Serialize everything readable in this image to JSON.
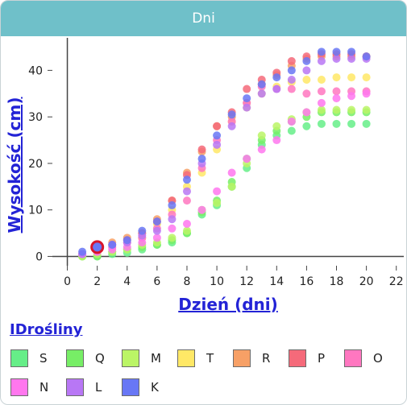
{
  "header": {
    "title": "Dni"
  },
  "chart_data": {
    "type": "scatter",
    "xlabel": "Dzień (dni)",
    "ylabel": "Wysokość (cm)",
    "xlim": [
      -1,
      22.5
    ],
    "ylim": [
      -2,
      47
    ],
    "xticks": [
      "0",
      "2",
      "4",
      "6",
      "8",
      "10",
      "12",
      "14",
      "16",
      "18",
      "20",
      "22"
    ],
    "yticks": [
      "0",
      "10",
      "20",
      "30",
      "40"
    ],
    "grid": false,
    "legend_placement": "bottom",
    "legend_title": "IDrośliny",
    "highlight": {
      "series": "K",
      "x": 2,
      "y": 2
    },
    "series": [
      {
        "name": "S",
        "color": "#66ee88",
        "x": [
          1,
          2,
          3,
          4,
          5,
          6,
          7,
          8,
          9,
          10,
          11,
          12,
          13,
          14,
          15,
          16,
          17,
          18,
          19,
          20
        ],
        "y": [
          0,
          0,
          0.5,
          0.8,
          1.5,
          2.5,
          3,
          5,
          9,
          11,
          15,
          19,
          24,
          26,
          27,
          28,
          28.5,
          28.5,
          28.5,
          28.5
        ]
      },
      {
        "name": "Q",
        "color": "#77ee66",
        "x": [
          1,
          2,
          3,
          4,
          5,
          6,
          7,
          8,
          9,
          10,
          11,
          12,
          13,
          14,
          15,
          16,
          17,
          18,
          19,
          20
        ],
        "y": [
          0,
          0,
          1,
          1.5,
          2,
          2.5,
          3.5,
          5,
          9.5,
          12,
          16,
          21,
          25,
          27,
          29,
          30,
          31,
          31,
          31,
          31
        ]
      },
      {
        "name": "M",
        "color": "#bbf566",
        "x": [
          1,
          2,
          3,
          4,
          5,
          6,
          7,
          8,
          9,
          10,
          11,
          12,
          13,
          14,
          15,
          16,
          17,
          18,
          19,
          20
        ],
        "y": [
          0,
          0.5,
          1,
          1.5,
          2.5,
          3,
          4,
          5.5,
          10,
          11.5,
          15,
          20,
          26,
          28,
          29.5,
          31,
          31.5,
          31.5,
          31.5,
          31.5
        ]
      },
      {
        "name": "T",
        "color": "#ffe866",
        "x": [
          1,
          2,
          3,
          4,
          5,
          6,
          7,
          8,
          9,
          10,
          11,
          12,
          13,
          14,
          15,
          16,
          17,
          18,
          19,
          20
        ],
        "y": [
          0.5,
          1,
          2,
          3,
          4,
          7,
          10,
          15,
          18,
          23,
          29,
          32,
          35,
          36.5,
          37.5,
          38,
          38,
          38.5,
          38.5,
          38.5
        ]
      },
      {
        "name": "R",
        "color": "#f7a066",
        "x": [
          1,
          2,
          3,
          4,
          5,
          6,
          7,
          8,
          9,
          10,
          11,
          12,
          13,
          14,
          15,
          16,
          17,
          18,
          19,
          20
        ],
        "y": [
          0.5,
          1.5,
          3,
          4,
          5,
          8,
          12,
          18,
          22.5,
          28,
          30,
          33,
          37,
          39,
          41,
          42.5,
          43,
          43,
          43,
          43
        ]
      },
      {
        "name": "P",
        "color": "#f56a7a",
        "x": [
          1,
          2,
          3,
          4,
          5,
          6,
          7,
          8,
          9,
          10,
          11,
          12,
          13,
          14,
          15,
          16,
          17,
          18,
          19,
          20
        ],
        "y": [
          0.5,
          1.5,
          2.5,
          3.5,
          5,
          7.5,
          12,
          17.5,
          23,
          28,
          31,
          36,
          38,
          39.5,
          42,
          43,
          43.5,
          43.5,
          43.5,
          43
        ]
      },
      {
        "name": "O",
        "color": "#ff77c0",
        "x": [
          1,
          2,
          3,
          4,
          5,
          6,
          7,
          8,
          9,
          10,
          11,
          12,
          13,
          14,
          15,
          16,
          17,
          18,
          19,
          20
        ],
        "y": [
          0.5,
          1,
          2,
          3,
          4,
          6,
          9,
          12,
          19,
          25,
          29,
          33,
          36.5,
          36,
          36,
          35,
          35.5,
          35.5,
          35.5,
          35.5
        ]
      },
      {
        "name": "N",
        "color": "#ff77ee",
        "x": [
          1,
          2,
          3,
          4,
          5,
          6,
          7,
          8,
          9,
          10,
          11,
          12,
          13,
          14,
          15,
          16,
          17,
          18,
          19,
          20
        ],
        "y": [
          0.5,
          1,
          1.5,
          2,
          3,
          4,
          6,
          7,
          10,
          14,
          18,
          21,
          23,
          25,
          29,
          31,
          33,
          34,
          34.5,
          35
        ]
      },
      {
        "name": "L",
        "color": "#b877f5",
        "x": [
          1,
          2,
          3,
          4,
          5,
          6,
          7,
          8,
          9,
          10,
          11,
          12,
          13,
          14,
          15,
          16,
          17,
          18,
          19,
          20
        ],
        "y": [
          0.5,
          1.5,
          2.5,
          3,
          4.5,
          5.5,
          8,
          14,
          20,
          24,
          28,
          32,
          35,
          36,
          38,
          40,
          42,
          42.5,
          42.5,
          42.5
        ]
      },
      {
        "name": "K",
        "color": "#6877f5",
        "x": [
          1,
          2,
          3,
          4,
          5,
          6,
          7,
          8,
          9,
          10,
          11,
          12,
          13,
          14,
          15,
          16,
          17,
          18,
          19,
          20
        ],
        "y": [
          1,
          2,
          2.5,
          3.5,
          5.5,
          7.5,
          11,
          16.5,
          21,
          26,
          30.5,
          34,
          37,
          38.5,
          40,
          42,
          44,
          44,
          44,
          43
        ]
      }
    ]
  }
}
